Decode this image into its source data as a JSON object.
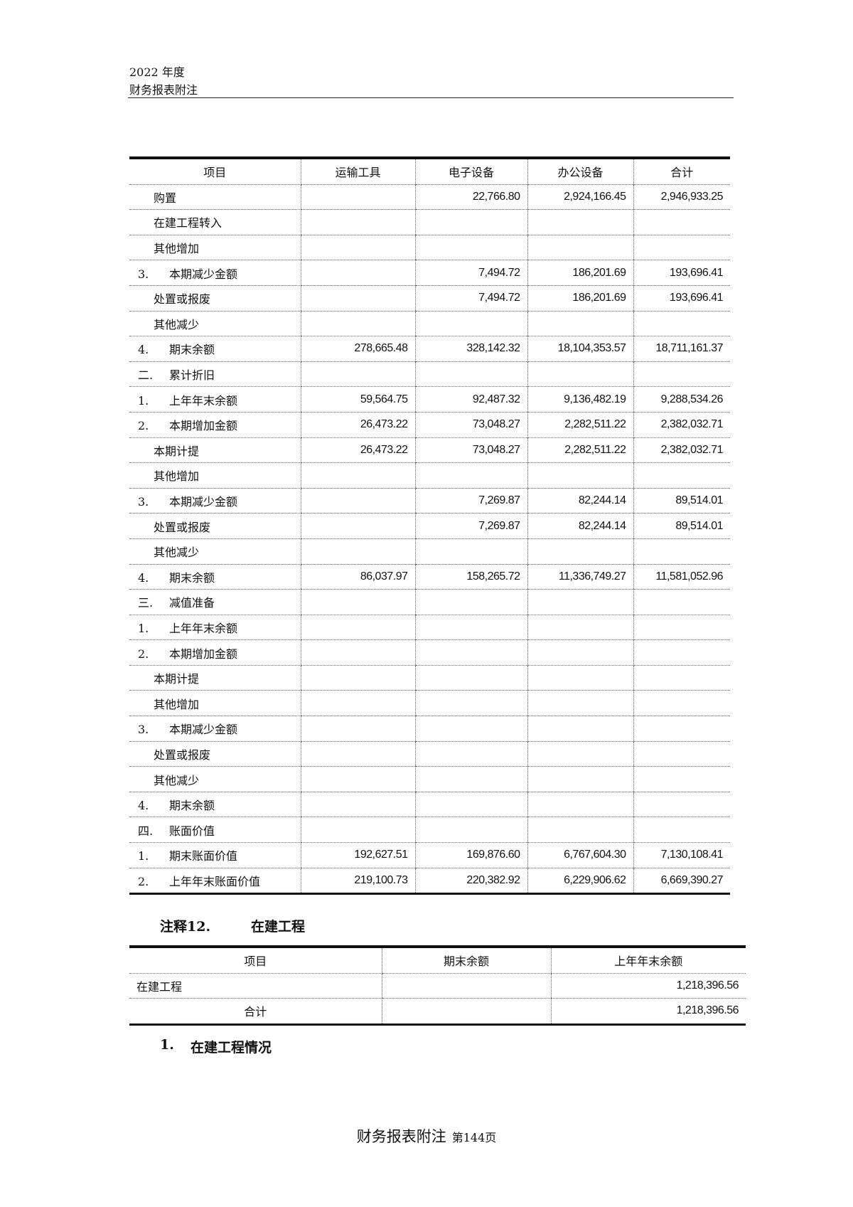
{
  "header": {
    "year": "2022 年度",
    "title": "财务报表附注"
  },
  "table1": {
    "columns": [
      "项目",
      "运输工具",
      "电子设备",
      "办公设备",
      "合计"
    ],
    "rows": [
      {
        "num": "",
        "label": "购置",
        "values": [
          "",
          "22,766.80",
          "2,924,166.45",
          "2,946,933.25"
        ]
      },
      {
        "num": "",
        "label": "在建工程转入",
        "values": [
          "",
          "",
          "",
          ""
        ]
      },
      {
        "num": "",
        "label": "其他增加",
        "values": [
          "",
          "",
          "",
          ""
        ]
      },
      {
        "num": "3.",
        "label": "本期减少金额",
        "values": [
          "",
          "7,494.72",
          "186,201.69",
          "193,696.41"
        ]
      },
      {
        "num": "",
        "label": "处置或报废",
        "values": [
          "",
          "7,494.72",
          "186,201.69",
          "193,696.41"
        ]
      },
      {
        "num": "",
        "label": "其他减少",
        "values": [
          "",
          "",
          "",
          ""
        ]
      },
      {
        "num": "4.",
        "label": "期末余额",
        "values": [
          "278,665.48",
          "328,142.32",
          "18,104,353.57",
          "18,711,161.37"
        ]
      },
      {
        "num": "二.",
        "label": "累计折旧",
        "values": [
          "",
          "",
          "",
          ""
        ]
      },
      {
        "num": "1.",
        "label": "上年年末余额",
        "values": [
          "59,564.75",
          "92,487.32",
          "9,136,482.19",
          "9,288,534.26"
        ]
      },
      {
        "num": "2.",
        "label": "本期增加金额",
        "values": [
          "26,473.22",
          "73,048.27",
          "2,282,511.22",
          "2,382,032.71"
        ]
      },
      {
        "num": "",
        "label": "本期计提",
        "values": [
          "26,473.22",
          "73,048.27",
          "2,282,511.22",
          "2,382,032.71"
        ]
      },
      {
        "num": "",
        "label": "其他增加",
        "values": [
          "",
          "",
          "",
          ""
        ]
      },
      {
        "num": "3.",
        "label": "本期减少金额",
        "values": [
          "",
          "7,269.87",
          "82,244.14",
          "89,514.01"
        ]
      },
      {
        "num": "",
        "label": "处置或报废",
        "values": [
          "",
          "7,269.87",
          "82,244.14",
          "89,514.01"
        ]
      },
      {
        "num": "",
        "label": "其他减少",
        "values": [
          "",
          "",
          "",
          ""
        ]
      },
      {
        "num": "4.",
        "label": "期末余额",
        "values": [
          "86,037.97",
          "158,265.72",
          "11,336,749.27",
          "11,581,052.96"
        ]
      },
      {
        "num": "三.",
        "label": "减值准备",
        "values": [
          "",
          "",
          "",
          ""
        ]
      },
      {
        "num": "1.",
        "label": "上年年末余额",
        "values": [
          "",
          "",
          "",
          ""
        ]
      },
      {
        "num": "2.",
        "label": "本期增加金额",
        "values": [
          "",
          "",
          "",
          ""
        ]
      },
      {
        "num": "",
        "label": "本期计提",
        "values": [
          "",
          "",
          "",
          ""
        ]
      },
      {
        "num": "",
        "label": "其他增加",
        "values": [
          "",
          "",
          "",
          ""
        ]
      },
      {
        "num": "3.",
        "label": "本期减少金额",
        "values": [
          "",
          "",
          "",
          ""
        ]
      },
      {
        "num": "",
        "label": "处置或报废",
        "values": [
          "",
          "",
          "",
          ""
        ]
      },
      {
        "num": "",
        "label": "其他减少",
        "values": [
          "",
          "",
          "",
          ""
        ]
      },
      {
        "num": "4.",
        "label": "期末余额",
        "values": [
          "",
          "",
          "",
          ""
        ]
      },
      {
        "num": "四.",
        "label": "账面价值",
        "values": [
          "",
          "",
          "",
          ""
        ]
      },
      {
        "num": "1.",
        "label": "期末账面价值",
        "values": [
          "192,627.51",
          "169,876.60",
          "6,767,604.30",
          "7,130,108.41"
        ]
      },
      {
        "num": "2.",
        "label": "上年年末账面价值",
        "values": [
          "219,100.73",
          "220,382.92",
          "6,229,906.62",
          "6,669,390.27"
        ]
      }
    ]
  },
  "note12": {
    "label": "注释12.",
    "title": "在建工程"
  },
  "table2": {
    "columns": [
      "项目",
      "期末余额",
      "上年年末余额"
    ],
    "rows": [
      {
        "label": "在建工程",
        "values": [
          "",
          "1,218,396.56"
        ]
      },
      {
        "label": "合计",
        "values": [
          "",
          "1,218,396.56"
        ]
      }
    ]
  },
  "subheading": {
    "num": "1.",
    "title": "在建工程情况"
  },
  "footer": {
    "title": "财务报表附注",
    "page": "第144页"
  }
}
